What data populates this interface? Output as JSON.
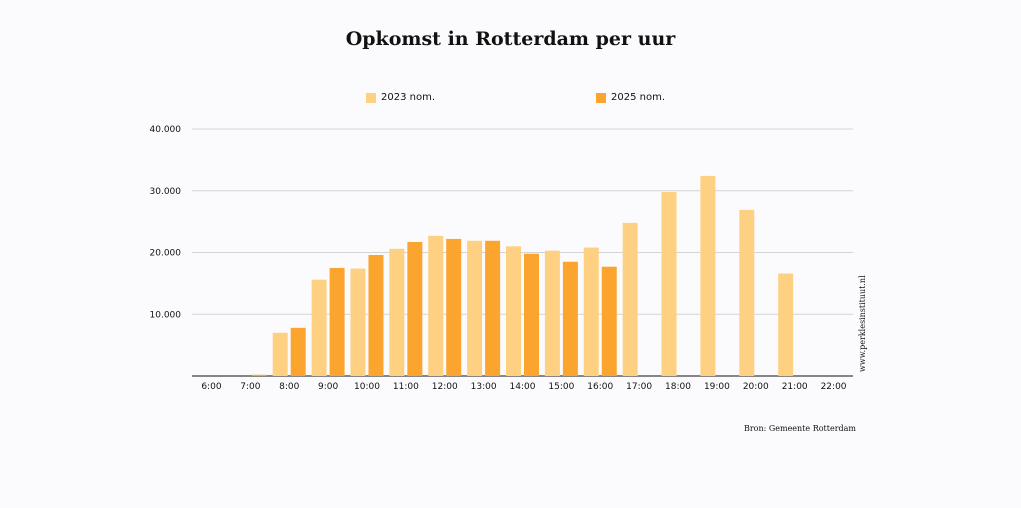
{
  "chart_data": {
    "type": "bar",
    "title": "Opkomst in Rotterdam per uur",
    "categories": [
      "6:00",
      "7:00",
      "8:00",
      "9:00",
      "10:00",
      "11:00",
      "12:00",
      "13:00",
      "14:00",
      "15:00",
      "16:00",
      "17:00",
      "18:00",
      "19:00",
      "20:00",
      "21:00",
      "22:00"
    ],
    "series": [
      {
        "name": "2023 nom.",
        "color": "#fed182",
        "values": [
          0,
          0,
          7000,
          15600,
          17400,
          20600,
          22700,
          21900,
          21000,
          20300,
          20800,
          24800,
          29800,
          32400,
          26900,
          16600,
          0
        ]
      },
      {
        "name": "2025 nom.",
        "color": "#fba52f",
        "values": [
          0,
          200,
          7800,
          17500,
          19600,
          21700,
          22200,
          21900,
          19800,
          18500,
          17700,
          null,
          null,
          null,
          null,
          null,
          null
        ]
      }
    ],
    "y_ticks": [
      "10.000",
      "20.000",
      "30.000",
      "40.000"
    ],
    "ylim": [
      0,
      40000
    ],
    "xlabel": "",
    "ylabel": "",
    "grid": true,
    "legend_position": "top"
  },
  "source": "Bron: Gemeente Rotterdam",
  "watermark": "www.perklesinstituut.nl"
}
